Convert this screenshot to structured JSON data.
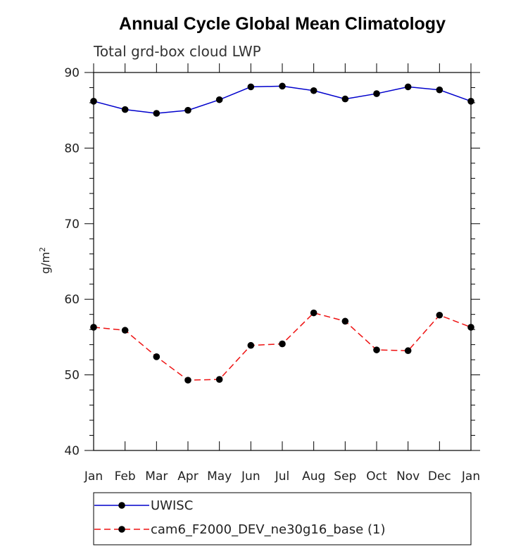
{
  "chart_data": {
    "type": "line",
    "title": "Annual Cycle Global Mean Climatology",
    "subtitle": "Total grd-box cloud LWP",
    "ylabel": "g/m",
    "ylabel_superscript": "2",
    "xlabel": "",
    "ylim": [
      40,
      90
    ],
    "yticks": [
      40,
      50,
      60,
      70,
      80,
      90
    ],
    "y_minor_step": 2,
    "grid": false,
    "categories": [
      "Jan",
      "Feb",
      "Mar",
      "Apr",
      "May",
      "Jun",
      "Jul",
      "Aug",
      "Sep",
      "Oct",
      "Nov",
      "Dec",
      "Jan"
    ],
    "series": [
      {
        "name": "UWISC",
        "color": "#0000cc",
        "dash": "solid",
        "values": [
          86.2,
          85.1,
          84.6,
          85.0,
          86.4,
          88.1,
          88.2,
          87.6,
          86.5,
          87.2,
          88.1,
          87.7,
          86.2
        ]
      },
      {
        "name": "cam6_F2000_DEV_ne30g16_base (1)",
        "color": "#ee1111",
        "dash": "dashed",
        "values": [
          56.3,
          55.9,
          52.4,
          49.3,
          49.4,
          53.9,
          54.1,
          58.2,
          57.1,
          53.3,
          53.2,
          57.9,
          56.3
        ]
      }
    ],
    "legend_position": "bottom-left"
  }
}
